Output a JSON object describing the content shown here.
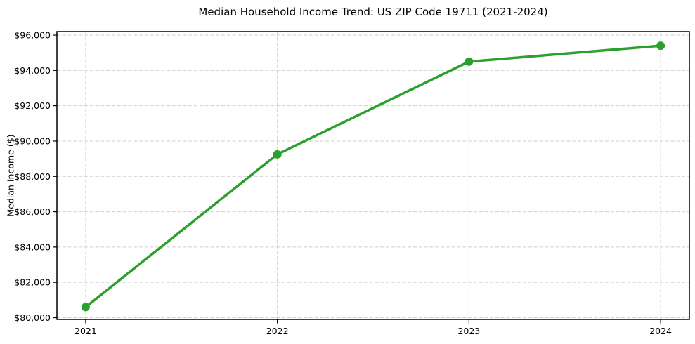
{
  "chart_data": {
    "type": "line",
    "title": "Median Household Income Trend: US ZIP Code 19711 (2021-2024)",
    "xlabel": "",
    "ylabel": "Median Income ($)",
    "categories": [
      "2021",
      "2022",
      "2023",
      "2024"
    ],
    "x": [
      2021,
      2022,
      2023,
      2024
    ],
    "series": [
      {
        "name": "Median Household Income",
        "values": [
          80600,
          89250,
          94500,
          95400
        ],
        "color": "#2ca02c",
        "marker": "circle"
      }
    ],
    "xlim": [
      2020.85,
      2024.15
    ],
    "ylim": [
      79900,
      96200
    ],
    "yticks": [
      80000,
      82000,
      84000,
      86000,
      88000,
      90000,
      92000,
      94000,
      96000
    ],
    "ytick_labels": [
      "$80,000",
      "$82,000",
      "$84,000",
      "$86,000",
      "$88,000",
      "$90,000",
      "$92,000",
      "$94,000",
      "$96,000"
    ],
    "grid": true,
    "grid_on": "both",
    "grid_line_style": "dashed",
    "grid_color": "#d0d0d0",
    "axis_color": "#000000",
    "background_color": "#ffffff",
    "legend_position": "none"
  }
}
